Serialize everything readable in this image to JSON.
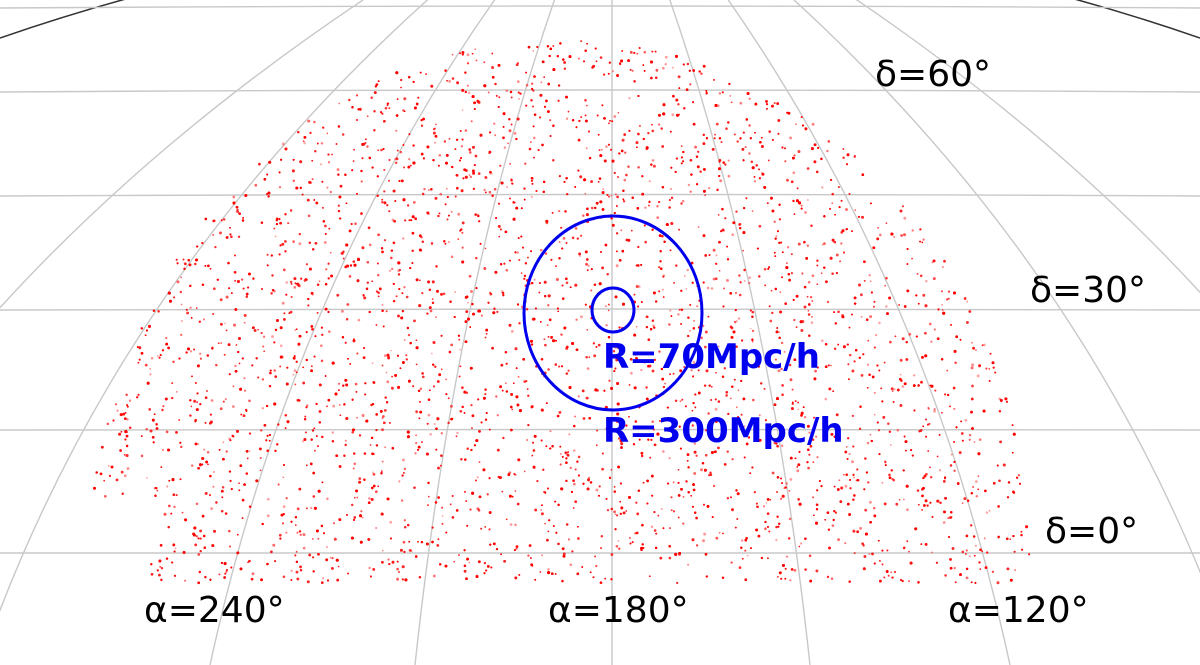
{
  "chart_data": {
    "type": "scatter",
    "projection": "Aitoff",
    "grid": true,
    "colors": {
      "points": "#ff0000",
      "circles": "#0000ee",
      "grid": "#c8c8c8"
    },
    "tick_labels": {
      "ra": [
        {
          "deg": 240,
          "text": "α=240°"
        },
        {
          "deg": 180,
          "text": "α=180°"
        },
        {
          "deg": 120,
          "text": "α=120°"
        }
      ],
      "dec": [
        {
          "deg": 60,
          "text": "δ=60°"
        },
        {
          "deg": 30,
          "text": "δ=30°"
        },
        {
          "deg": 0,
          "text": "δ=0°"
        }
      ]
    },
    "footprint": {
      "ra_range": [
        120,
        240
      ],
      "dec_range": [
        0,
        60
      ]
    },
    "annotations": [
      {
        "text": "R=70Mpc/h",
        "ra_center": 180,
        "dec_center": 30
      },
      {
        "text": "R=300Mpc/h",
        "ra_center": 180,
        "dec_center": 30
      }
    ]
  }
}
